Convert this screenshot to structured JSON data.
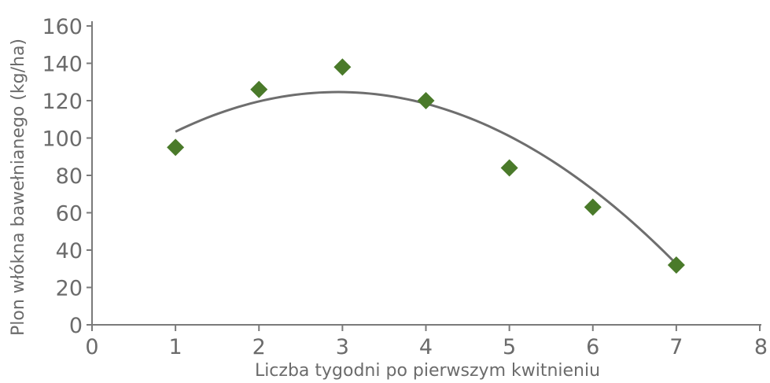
{
  "chart_data": {
    "type": "scatter",
    "xlabel": "Liczba tygodni po pierwszym kwitnieniu",
    "ylabel": "Plon włókna bawełnianego (kg/ha)",
    "xlim": [
      0,
      8
    ],
    "ylim": [
      0,
      160
    ],
    "x_ticks": [
      0,
      1,
      2,
      3,
      4,
      5,
      6,
      7,
      8
    ],
    "y_ticks": [
      0,
      20,
      40,
      60,
      80,
      100,
      120,
      140,
      160
    ],
    "grid": false,
    "legend": "none",
    "series": [
      {
        "x": [
          1,
          2,
          3,
          4,
          5,
          6,
          7
        ],
        "y": [
          95,
          126,
          138,
          120,
          84,
          63,
          32
        ],
        "marker": "diamond",
        "color": "#4a7a2a"
      }
    ],
    "trendline": {
      "type": "quadratic",
      "x_range": [
        1,
        7
      ],
      "coefficients": [
        76,
        33,
        -5.6
      ],
      "color": "#6e6e6e"
    },
    "axis_color": "#7a7a7a",
    "text_color": "#6b6b6b"
  }
}
